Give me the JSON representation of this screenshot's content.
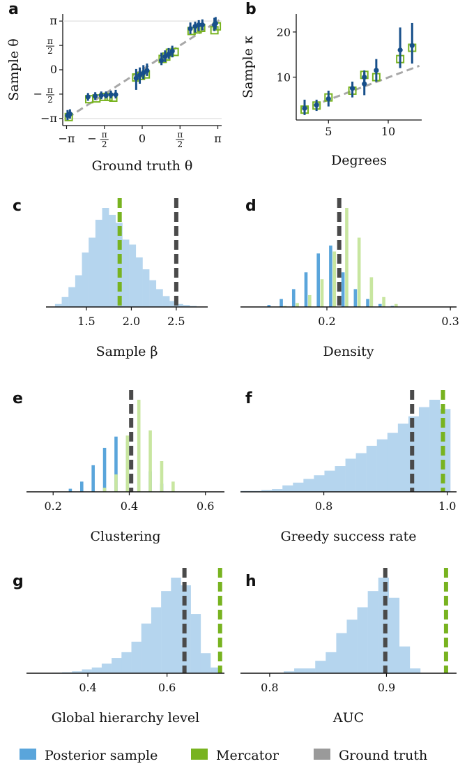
{
  "colors": {
    "posterior": "#5aa5db",
    "posterior_light": "#b5d5ee",
    "mercator": "#78b320",
    "mercator_light": "#c8e6a0",
    "ground_truth": "#4a4a4a",
    "ground_truth_legend": "#9a9a9a",
    "dark_blue": "#174f8a"
  },
  "legend": [
    {
      "key": "posterior",
      "label": "Posterior sample"
    },
    {
      "key": "mercator",
      "label": "Mercator"
    },
    {
      "key": "ground_truth",
      "label": "Ground truth"
    }
  ],
  "chart_data": [
    {
      "id": "a",
      "panel_label": "a",
      "type": "scatter",
      "xlabel": "Ground truth θ",
      "ylabel": "Sample θ",
      "xlim": [
        -3.3,
        3.3
      ],
      "ylim": [
        -3.6,
        3.6
      ],
      "xticks": [
        {
          "v": -3.1416,
          "t": "−π"
        },
        {
          "v": -1.5708,
          "t": "−π/2"
        },
        {
          "v": 0,
          "t": "0"
        },
        {
          "v": 1.5708,
          "t": "π/2"
        },
        {
          "v": 3.1416,
          "t": "π"
        }
      ],
      "yticks": [
        {
          "v": -3.1416,
          "t": "−π"
        },
        {
          "v": -1.5708,
          "t": "−π/2"
        },
        {
          "v": 0,
          "t": "0"
        },
        {
          "v": 1.5708,
          "t": "π/2"
        },
        {
          "v": 3.1416,
          "t": "π"
        }
      ],
      "ground_truth_line": {
        "x": [
          -3.1,
          3.2
        ],
        "y": [
          -3.1,
          3.2
        ]
      },
      "posterior": [
        {
          "x": -3.1,
          "y": -2.95,
          "lo": -3.25,
          "hi": -2.6
        },
        {
          "x": -3.0,
          "y": -2.85,
          "lo": -3.15,
          "hi": -2.55
        },
        {
          "x": -2.25,
          "y": -1.75,
          "lo": -2.0,
          "hi": -1.5
        },
        {
          "x": -1.95,
          "y": -1.7,
          "lo": -1.95,
          "hi": -1.45
        },
        {
          "x": -1.7,
          "y": -1.65,
          "lo": -1.9,
          "hi": -1.4
        },
        {
          "x": -1.5,
          "y": -1.65,
          "lo": -1.85,
          "hi": -1.4
        },
        {
          "x": -1.3,
          "y": -1.6,
          "lo": -1.85,
          "hi": -1.35
        },
        {
          "x": -1.1,
          "y": -1.6,
          "lo": -1.85,
          "hi": -1.3
        },
        {
          "x": -0.25,
          "y": -0.55,
          "lo": -1.3,
          "hi": 0.05
        },
        {
          "x": -0.1,
          "y": -0.35,
          "lo": -0.9,
          "hi": 0.15
        },
        {
          "x": 0.05,
          "y": -0.2,
          "lo": -0.6,
          "hi": 0.3
        },
        {
          "x": 0.2,
          "y": -0.05,
          "lo": -0.4,
          "hi": 0.4
        },
        {
          "x": 0.8,
          "y": 0.6,
          "lo": 0.3,
          "hi": 1.1
        },
        {
          "x": 0.95,
          "y": 0.85,
          "lo": 0.5,
          "hi": 1.25
        },
        {
          "x": 1.1,
          "y": 1.0,
          "lo": 0.7,
          "hi": 1.4
        },
        {
          "x": 1.25,
          "y": 1.2,
          "lo": 0.8,
          "hi": 1.55
        },
        {
          "x": 2.0,
          "y": 2.65,
          "lo": 2.3,
          "hi": 3.05
        },
        {
          "x": 2.2,
          "y": 2.8,
          "lo": 2.4,
          "hi": 3.1
        },
        {
          "x": 2.35,
          "y": 2.9,
          "lo": 2.5,
          "hi": 3.2
        },
        {
          "x": 2.5,
          "y": 2.9,
          "lo": 2.55,
          "hi": 3.25
        },
        {
          "x": 3.0,
          "y": 2.9,
          "lo": 2.5,
          "hi": 3.35
        },
        {
          "x": 3.05,
          "y": 3.0,
          "lo": 2.6,
          "hi": 3.4
        }
      ],
      "mercator": [
        {
          "x": -3.05,
          "y": -3.05
        },
        {
          "x": -2.2,
          "y": -1.9
        },
        {
          "x": -1.9,
          "y": -1.85
        },
        {
          "x": -1.6,
          "y": -1.75
        },
        {
          "x": -1.4,
          "y": -1.75
        },
        {
          "x": -1.2,
          "y": -1.8
        },
        {
          "x": -0.25,
          "y": -0.5
        },
        {
          "x": -0.05,
          "y": -0.4
        },
        {
          "x": 0.15,
          "y": -0.3
        },
        {
          "x": 0.85,
          "y": 0.7
        },
        {
          "x": 1.0,
          "y": 0.85
        },
        {
          "x": 1.15,
          "y": 1.1
        },
        {
          "x": 1.35,
          "y": 1.15
        },
        {
          "x": 2.05,
          "y": 2.5
        },
        {
          "x": 2.3,
          "y": 2.6
        },
        {
          "x": 2.45,
          "y": 2.7
        },
        {
          "x": 3.0,
          "y": 2.55
        },
        {
          "x": 3.1,
          "y": 2.8
        }
      ]
    },
    {
      "id": "b",
      "panel_label": "b",
      "type": "scatter",
      "xlabel": "Degrees",
      "ylabel": "Sample κ",
      "xlim": [
        2.3,
        12.8
      ],
      "ylim": [
        0.5,
        24
      ],
      "xticks": [
        {
          "v": 5,
          "t": "5"
        },
        {
          "v": 10,
          "t": "10"
        }
      ],
      "yticks": [
        {
          "v": 10,
          "t": "10"
        },
        {
          "v": 20,
          "t": "20"
        }
      ],
      "ground_truth_line": {
        "x": [
          2.8,
          12.6
        ],
        "y": [
          2.8,
          12.5
        ]
      },
      "posterior": [
        {
          "x": 3,
          "y": 3.1,
          "lo": 1.6,
          "hi": 5.0
        },
        {
          "x": 4,
          "y": 3.8,
          "lo": 2.5,
          "hi": 5.0
        },
        {
          "x": 5,
          "y": 5.2,
          "lo": 3.5,
          "hi": 7.0
        },
        {
          "x": 7,
          "y": 7.5,
          "lo": 5.5,
          "hi": 9.0
        },
        {
          "x": 8,
          "y": 8.5,
          "lo": 6.0,
          "hi": 11.0
        },
        {
          "x": 8,
          "y": 10.0,
          "lo": 8.0,
          "hi": 11.5
        },
        {
          "x": 9,
          "y": 11.5,
          "lo": 9.0,
          "hi": 14.0
        },
        {
          "x": 11,
          "y": 16.0,
          "lo": 12.0,
          "hi": 21.0
        },
        {
          "x": 12,
          "y": 17.0,
          "lo": 13.0,
          "hi": 22.0
        }
      ],
      "mercator": [
        {
          "x": 3,
          "y": 2.8
        },
        {
          "x": 4,
          "y": 3.7
        },
        {
          "x": 5,
          "y": 5.5
        },
        {
          "x": 7,
          "y": 7.0
        },
        {
          "x": 8,
          "y": 10.5
        },
        {
          "x": 9,
          "y": 10.0
        },
        {
          "x": 11,
          "y": 14.0
        },
        {
          "x": 12,
          "y": 16.5
        }
      ]
    },
    {
      "id": "c",
      "panel_label": "c",
      "type": "histogram",
      "xlabel": "Sample β",
      "xlim": [
        1.05,
        2.85
      ],
      "xticks": [
        {
          "v": 1.5,
          "t": "1.5"
        },
        {
          "v": 2.0,
          "t": "2.0"
        },
        {
          "v": 2.5,
          "t": "2.5"
        }
      ],
      "series": [
        {
          "color": "posterior_light",
          "bins": [
            1.15,
            1.225,
            1.3,
            1.375,
            1.45,
            1.525,
            1.6,
            1.675,
            1.75,
            1.825,
            1.9,
            1.975,
            2.05,
            2.125,
            2.2,
            2.275,
            2.35,
            2.425,
            2.5,
            2.575,
            2.65,
            2.725
          ],
          "values": [
            3,
            10,
            20,
            32,
            55,
            70,
            88,
            100,
            93,
            85,
            68,
            63,
            50,
            38,
            27,
            18,
            11,
            6,
            3,
            2,
            1
          ]
        }
      ],
      "vlines": [
        {
          "x": 1.87,
          "color": "mercator"
        },
        {
          "x": 2.5,
          "color": "ground_truth"
        }
      ]
    },
    {
      "id": "d",
      "panel_label": "d",
      "type": "histogram",
      "xlabel": "Density",
      "xlim": [
        0.13,
        0.305
      ],
      "xticks": [
        {
          "v": 0.2,
          "t": "0.2"
        },
        {
          "v": 0.3,
          "t": "0.3"
        }
      ],
      "series": [
        {
          "color": "posterior",
          "bar_width": 0.0025,
          "x": [
            0.153,
            0.163,
            0.173,
            0.183,
            0.193,
            0.203,
            0.213,
            0.223,
            0.233,
            0.243,
            0.253
          ],
          "values": [
            2,
            8,
            18,
            35,
            54,
            62,
            35,
            18,
            8,
            3,
            1
          ]
        },
        {
          "color": "mercator_light",
          "bar_width": 0.0025,
          "x": [
            0.166,
            0.176,
            0.186,
            0.196,
            0.206,
            0.216,
            0.226,
            0.236,
            0.246,
            0.256
          ],
          "values": [
            1,
            4,
            12,
            28,
            56,
            100,
            70,
            30,
            10,
            3
          ]
        }
      ],
      "vlines": [
        {
          "x": 0.21,
          "color": "ground_truth"
        }
      ]
    },
    {
      "id": "e",
      "panel_label": "e",
      "type": "histogram",
      "xlabel": "Clustering",
      "xlim": [
        0.13,
        0.65
      ],
      "xticks": [
        {
          "v": 0.2,
          "t": "0.2"
        },
        {
          "v": 0.4,
          "t": "0.4"
        },
        {
          "v": 0.6,
          "t": "0.6"
        }
      ],
      "series": [
        {
          "color": "posterior",
          "bar_width": 0.008,
          "x": [
            0.245,
            0.275,
            0.305,
            0.335,
            0.365,
            0.395,
            0.425,
            0.455,
            0.485
          ],
          "values": [
            3,
            10,
            26,
            43,
            54,
            49,
            35,
            20,
            8
          ]
        },
        {
          "color": "mercator_light",
          "bar_width": 0.008,
          "x": [
            0.335,
            0.365,
            0.395,
            0.425,
            0.455,
            0.485,
            0.515
          ],
          "values": [
            4,
            17,
            55,
            90,
            60,
            30,
            10
          ]
        }
      ],
      "vlines": [
        {
          "x": 0.405,
          "color": "ground_truth"
        }
      ]
    },
    {
      "id": "f",
      "panel_label": "f",
      "type": "histogram",
      "xlabel": "Greedy success rate",
      "xlim": [
        0.665,
        1.015
      ],
      "xticks": [
        {
          "v": 0.8,
          "t": "0.8"
        },
        {
          "v": 1.0,
          "t": "1.0"
        }
      ],
      "series": [
        {
          "color": "posterior_light",
          "bins": [
            0.665,
            0.682,
            0.699,
            0.716,
            0.733,
            0.75,
            0.767,
            0.784,
            0.801,
            0.818,
            0.835,
            0.852,
            0.869,
            0.886,
            0.903,
            0.92,
            0.937,
            0.954,
            0.971,
            0.988,
            1.005
          ],
          "values": [
            1,
            1,
            2,
            3,
            7,
            10,
            14,
            18,
            23,
            28,
            36,
            42,
            50,
            57,
            64,
            74,
            82,
            92,
            100,
            90
          ]
        }
      ],
      "vlines": [
        {
          "x": 0.943,
          "color": "ground_truth"
        },
        {
          "x": 0.993,
          "color": "mercator"
        }
      ]
    },
    {
      "id": "g",
      "panel_label": "g",
      "type": "histogram",
      "xlabel": "Global hierarchy level",
      "xlim": [
        0.245,
        0.745
      ],
      "xticks": [
        {
          "v": 0.4,
          "t": "0.4"
        },
        {
          "v": 0.6,
          "t": "0.6"
        }
      ],
      "series": [
        {
          "color": "posterior_light",
          "bins": [
            0.31,
            0.335,
            0.36,
            0.385,
            0.41,
            0.435,
            0.46,
            0.485,
            0.51,
            0.535,
            0.56,
            0.585,
            0.61,
            0.635,
            0.66,
            0.685,
            0.71,
            0.735
          ],
          "values": [
            0.5,
            1,
            2,
            4,
            6,
            10,
            16,
            22,
            33,
            52,
            69,
            86,
            100,
            92,
            62,
            21,
            6
          ]
        }
      ],
      "vlines": [
        {
          "x": 0.644,
          "color": "ground_truth"
        },
        {
          "x": 0.734,
          "color": "mercator"
        }
      ]
    },
    {
      "id": "h",
      "panel_label": "h",
      "type": "histogram",
      "xlabel": "AUC",
      "xlim": [
        0.775,
        0.96
      ],
      "xticks": [
        {
          "v": 0.8,
          "t": "0.8"
        },
        {
          "v": 0.9,
          "t": "0.9"
        }
      ],
      "series": [
        {
          "color": "posterior_light",
          "bins": [
            0.812,
            0.821,
            0.83,
            0.839,
            0.848,
            0.857,
            0.866,
            0.875,
            0.884,
            0.893,
            0.902,
            0.911,
            0.92,
            0.929
          ],
          "values": [
            2,
            5,
            5,
            13,
            22,
            42,
            56,
            69,
            86,
            100,
            79,
            28,
            5
          ]
        }
      ],
      "vlines": [
        {
          "x": 0.899,
          "color": "ground_truth"
        },
        {
          "x": 0.951,
          "color": "mercator"
        }
      ]
    }
  ]
}
